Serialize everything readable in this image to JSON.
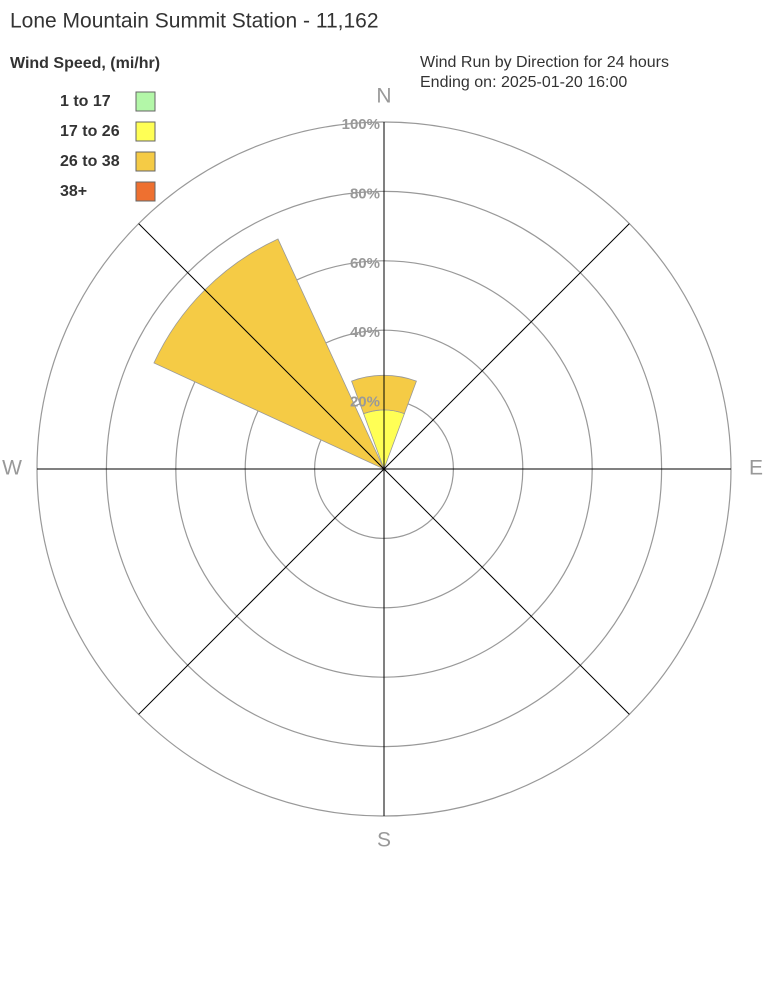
{
  "chart_data": {
    "type": "windrose",
    "title": "Lone Mountain Summit Station - 11,162",
    "legend_title": "Wind Speed, (mi/hr)",
    "subtitle": [
      "Wind Run by Direction for 24 hours",
      "Ending on: 2025-01-20 16:00"
    ],
    "categories": [
      "N",
      null,
      "E",
      null,
      "S",
      null,
      "W",
      null
    ],
    "series": [
      {
        "name": "1 to 17",
        "color": "#b3f7a8",
        "values": [
          0,
          0,
          0,
          0,
          0,
          0,
          0,
          0
        ]
      },
      {
        "name": "17 to 26",
        "color": "#ffff55",
        "values": [
          17,
          0,
          0,
          0,
          0,
          0,
          0,
          0
        ]
      },
      {
        "name": "26 to 38",
        "color": "#f5cb45",
        "values": [
          10,
          0,
          0,
          0,
          0,
          0,
          0,
          73
        ]
      },
      {
        "name": "38+",
        "color": "#ee7030",
        "values": [
          0,
          0,
          0,
          0,
          0,
          0,
          0,
          0
        ]
      }
    ],
    "rlim": [
      0,
      100
    ],
    "rticks": [
      {
        "value": 20,
        "label": "20%"
      },
      {
        "value": 40,
        "label": "40%"
      },
      {
        "value": 60,
        "label": "60%"
      },
      {
        "value": 80,
        "label": "80%"
      },
      {
        "value": 100,
        "label": "100%"
      }
    ],
    "legend": "upper left"
  }
}
